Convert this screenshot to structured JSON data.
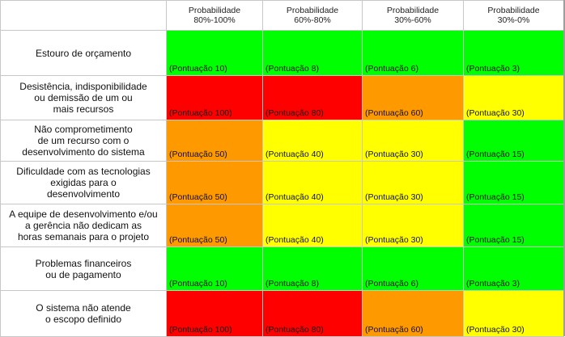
{
  "headers": [
    "",
    "Probabilidade\n80%-100%",
    "Probabilidade\n60%-80%",
    "Probabilidade\n30%-60%",
    "Probabilidade\n30%-0%"
  ],
  "rows": [
    {
      "label": "Estouro de orçamento",
      "cells": [
        {
          "text": "(Pontuação 10)",
          "color": "#00ff00"
        },
        {
          "text": "(Pontuação 8)",
          "color": "#00ff00"
        },
        {
          "text": "(Pontuação 6)",
          "color": "#00ff00"
        },
        {
          "text": "(Pontuação 3)",
          "color": "#00ff00"
        }
      ]
    },
    {
      "label": "Desistência, indisponibilidade\nou demissão de um ou\nmais recursos",
      "cells": [
        {
          "text": "(Pontuação 100)",
          "color": "#ff0000"
        },
        {
          "text": "(Pontuação 80)",
          "color": "#ff0000"
        },
        {
          "text": "(Pontuação 60)",
          "color": "#ff9900"
        },
        {
          "text": "(Pontuação 30)",
          "color": "#ffff00"
        }
      ]
    },
    {
      "label": "Não comprometimento\nde um recurso com o\ndesenvolvimento do sistema",
      "cells": [
        {
          "text": "(Pontuação 50)",
          "color": "#ff9900"
        },
        {
          "text": "(Pontuação 40)",
          "color": "#ffff00"
        },
        {
          "text": "(Pontuação 30)",
          "color": "#ffff00"
        },
        {
          "text": "(Pontuação 15)",
          "color": "#00ff00"
        }
      ]
    },
    {
      "label": "Dificuldade com as tecnologias\nexigidas para o\ndesenvolvimento",
      "cells": [
        {
          "text": "(Pontuação 50)",
          "color": "#ff9900"
        },
        {
          "text": "(Pontuação 40)",
          "color": "#ffff00"
        },
        {
          "text": "(Pontuação 30)",
          "color": "#ffff00"
        },
        {
          "text": "(Pontuação 15)",
          "color": "#00ff00"
        }
      ]
    },
    {
      "label": "A equipe de desenvolvimento e/ou\na gerência não dedicam as\nhoras semanais para o projeto",
      "cells": [
        {
          "text": "(Pontuação 50)",
          "color": "#ff9900"
        },
        {
          "text": "(Pontuação 40)",
          "color": "#ffff00"
        },
        {
          "text": "(Pontuação 30)",
          "color": "#ffff00"
        },
        {
          "text": "(Pontuação 15)",
          "color": "#00ff00"
        }
      ]
    },
    {
      "label": "Problemas financeiros\nou de pagamento",
      "cells": [
        {
          "text": "(Pontuação 10)",
          "color": "#00ff00"
        },
        {
          "text": "(Pontuação 8)",
          "color": "#00ff00"
        },
        {
          "text": "(Pontuação 6)",
          "color": "#00ff00"
        },
        {
          "text": "(Pontuação 3)",
          "color": "#00ff00"
        }
      ]
    },
    {
      "label": "O sistema não atende\no escopo definido",
      "cells": [
        {
          "text": "(Pontuação 100)",
          "color": "#ff0000"
        },
        {
          "text": "(Pontuação 80)",
          "color": "#ff0000"
        },
        {
          "text": "(Pontuação 60)",
          "color": "#ff9900"
        },
        {
          "text": "(Pontuação 30)",
          "color": "#ffff00"
        }
      ]
    }
  ]
}
